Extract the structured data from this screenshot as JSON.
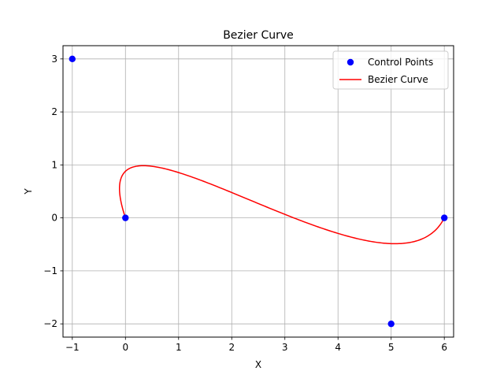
{
  "chart_data": {
    "type": "line",
    "title": "Bezier Curve",
    "xlabel": "X",
    "ylabel": "Y",
    "xlim": [
      -1.175,
      6.175
    ],
    "ylim": [
      -2.25,
      3.25
    ],
    "xticks": [
      -1,
      0,
      1,
      2,
      3,
      4,
      5,
      6
    ],
    "yticks": [
      -2,
      -1,
      0,
      1,
      2,
      3
    ],
    "xtick_labels": [
      "−1",
      "0",
      "1",
      "2",
      "3",
      "4",
      "5",
      "6"
    ],
    "ytick_labels": [
      "−2",
      "−1",
      "0",
      "1",
      "2",
      "3"
    ],
    "grid": true,
    "legend": "top-right",
    "series": [
      {
        "name": "Control Points",
        "kind": "scatter",
        "color": "#0000ff",
        "x": [
          0,
          -1,
          5,
          6
        ],
        "y": [
          0,
          3,
          -2,
          0
        ]
      },
      {
        "name": "Bezier Curve",
        "kind": "line",
        "color": "#ff0000",
        "curve": "cubic-bezier",
        "control_points": [
          [
            0,
            0
          ],
          [
            -1,
            3
          ],
          [
            5,
            -2
          ],
          [
            6,
            0
          ]
        ]
      }
    ]
  }
}
